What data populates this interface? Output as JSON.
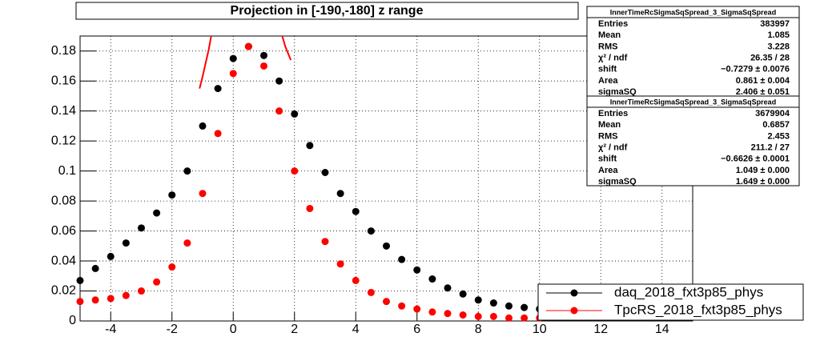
{
  "chart_data": {
    "type": "scatter",
    "title": "Projection in [-190,-180] z range",
    "xlim": [
      -5,
      15
    ],
    "xticks": [
      -4,
      -2,
      0,
      2,
      4,
      6,
      8,
      10,
      12,
      14
    ],
    "ylim": [
      0,
      0.19
    ],
    "yticks": [
      0,
      0.02,
      0.04,
      0.06,
      0.08,
      0.1,
      0.12,
      0.14,
      0.16,
      0.18
    ],
    "grid": true,
    "legend": "lower right",
    "x": [
      -5,
      -4.5,
      -4,
      -3.5,
      -3,
      -2.5,
      -2,
      -1.5,
      -1,
      -0.5,
      0,
      0.5,
      1,
      1.5,
      2,
      2.5,
      3,
      3.5,
      4,
      4.5,
      5,
      5.5,
      6,
      6.5,
      7,
      7.5,
      8,
      8.5,
      9,
      9.5,
      10
    ],
    "series": [
      {
        "name": "daq_2018_fxt3p85_phys",
        "color": "#000000",
        "values": [
          0.027,
          0.035,
          0.043,
          0.052,
          0.062,
          0.072,
          0.084,
          0.1,
          0.13,
          0.155,
          0.175,
          0.183,
          0.177,
          0.16,
          0.138,
          0.117,
          0.099,
          0.085,
          0.073,
          0.06,
          0.05,
          0.041,
          0.034,
          0.028,
          0.022,
          0.018,
          0.014,
          0.012,
          0.01,
          0.009,
          0.008
        ]
      },
      {
        "name": "TpcRS_2018_fxt3p85_phys",
        "color": "#ff0000",
        "values": [
          0.013,
          0.014,
          0.015,
          0.017,
          0.02,
          0.026,
          0.036,
          0.052,
          0.085,
          0.125,
          0.165,
          0.183,
          0.17,
          0.14,
          0.1,
          0.075,
          0.053,
          0.038,
          0.027,
          0.019,
          0.013,
          0.01,
          0.008,
          0.006,
          0.005,
          0.004,
          0.003,
          0.003,
          0.002,
          0.002,
          0.002
        ]
      }
    ],
    "fit": {
      "color": "#ff0000",
      "segments": [
        {
          "x": [
            -1.1,
            -1.0,
            -0.9,
            -0.8,
            -0.72
          ],
          "values": [
            0.155,
            0.163,
            0.172,
            0.181,
            0.19
          ]
        },
        {
          "x": [
            1.6,
            1.7,
            1.8,
            1.88
          ],
          "values": [
            0.19,
            0.183,
            0.178,
            0.174
          ]
        }
      ]
    },
    "stats": [
      {
        "title": "InnerTimeRcSigmaSqSpread_3_SigmaSqSpread",
        "rows": [
          [
            "Entries",
            "383997"
          ],
          [
            "Mean",
            "1.085"
          ],
          [
            "RMS",
            "3.228"
          ],
          [
            "χ² / ndf",
            "26.35 / 28"
          ],
          [
            "shift",
            "−0.7279 ± 0.0076"
          ],
          [
            "Area",
            "0.861 ± 0.004"
          ],
          [
            "sigmaSQ",
            "2.406 ± 0.051"
          ]
        ]
      },
      {
        "title": "InnerTimeRcSigmaSqSpread_3_SigmaSqSpread",
        "rows": [
          [
            "Entries",
            "3679904"
          ],
          [
            "Mean",
            "0.6857"
          ],
          [
            "RMS",
            "2.453"
          ],
          [
            "χ² / ndf",
            "211.2 / 27"
          ],
          [
            "shift",
            "−0.6626 ± 0.0001"
          ],
          [
            "Area",
            "1.049 ± 0.000"
          ],
          [
            "sigmaSQ",
            "1.649 ± 0.000"
          ]
        ]
      }
    ]
  }
}
